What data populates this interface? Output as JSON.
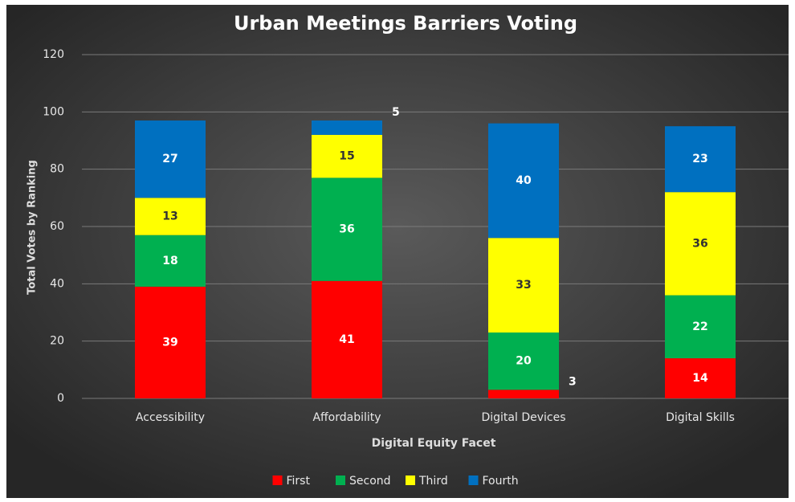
{
  "chart_data": {
    "type": "stacked_bar",
    "title": "Urban Meetings Barriers Voting",
    "x_label": "Digital Equity Facet",
    "y_label": "Total Votes by Ranking",
    "categories": [
      "Accessibility",
      "Affordability",
      "Digital Devices",
      "Digital Skills"
    ],
    "series": [
      {
        "name": "First",
        "color": "#ff0000",
        "label_color": "#ffffff",
        "values": [
          39,
          41,
          3,
          14
        ]
      },
      {
        "name": "Second",
        "color": "#00b050",
        "label_color": "#ffffff",
        "values": [
          18,
          36,
          20,
          22
        ]
      },
      {
        "name": "Third",
        "color": "#ffff00",
        "label_color": "#333333",
        "values": [
          13,
          15,
          33,
          36
        ]
      },
      {
        "name": "Fourth",
        "color": "#0070c0",
        "label_color": "#ffffff",
        "values": [
          27,
          5,
          40,
          23
        ]
      }
    ],
    "ylim": [
      0,
      120
    ],
    "yticks": [
      0,
      20,
      40,
      60,
      80,
      100,
      120
    ],
    "grid": true,
    "legend": "bottom"
  }
}
